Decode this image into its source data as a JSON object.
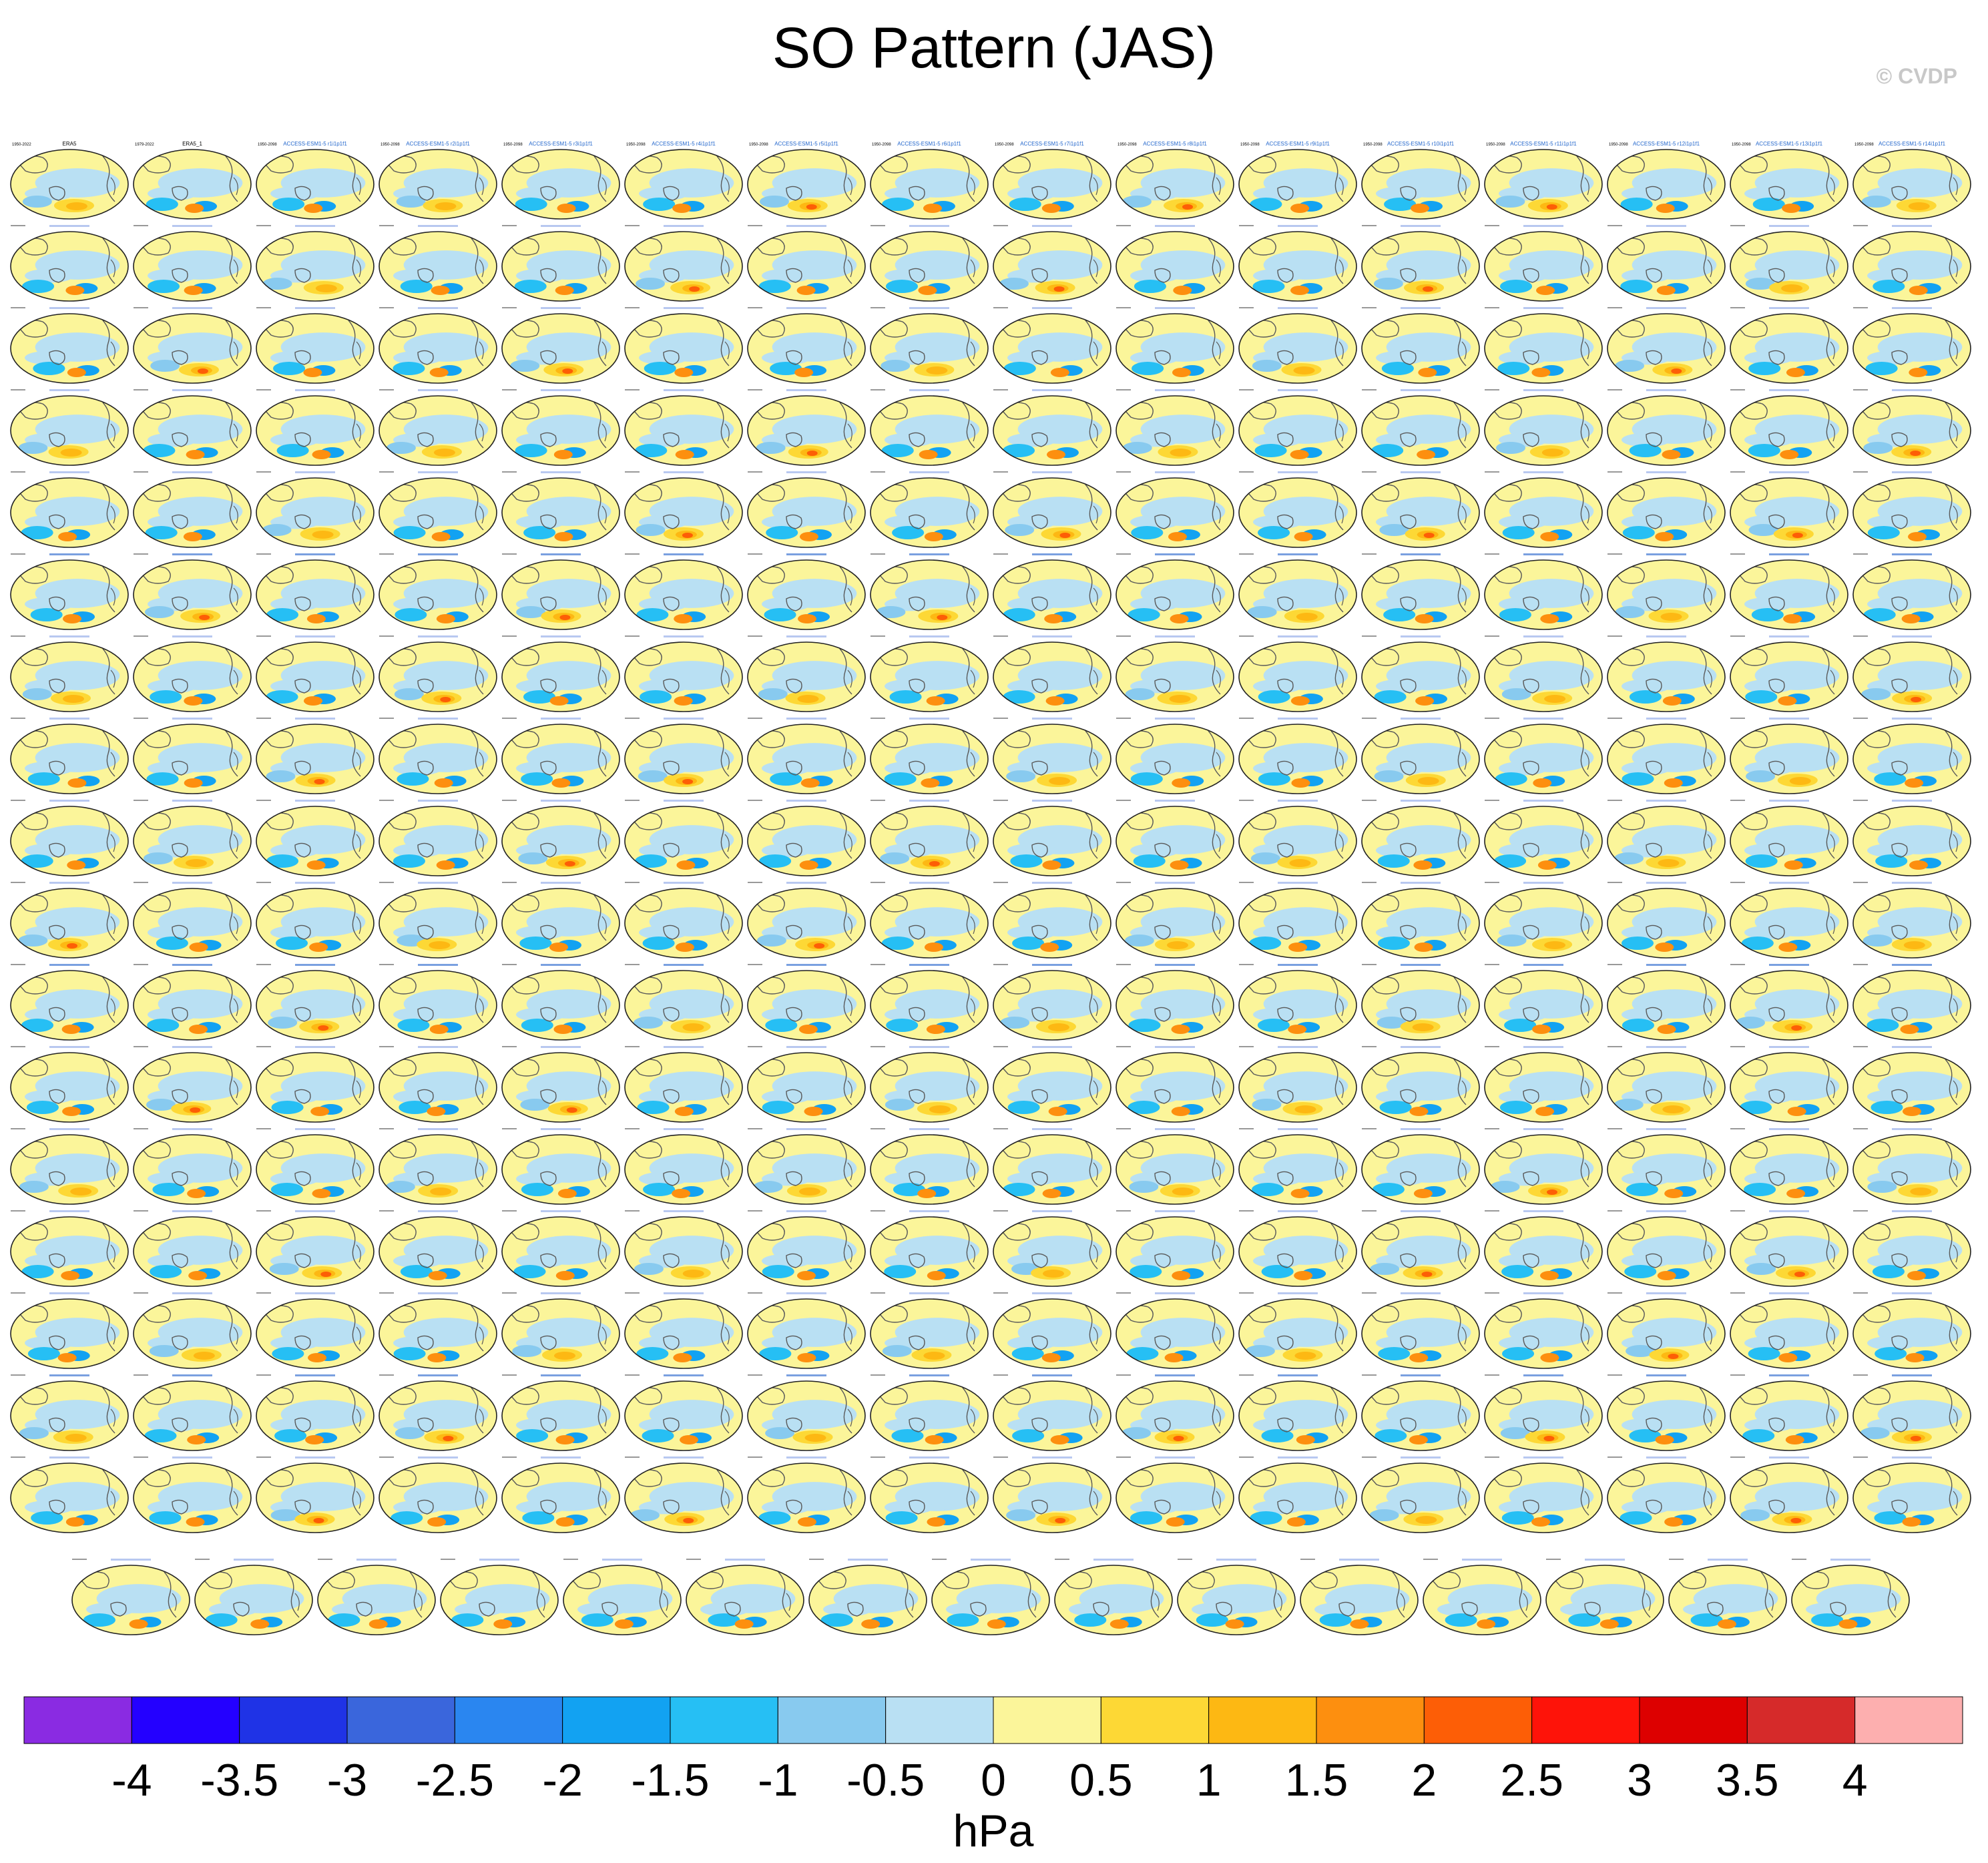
{
  "title": "SO Pattern (JAS)",
  "copyright": "© CVDP",
  "panels": {
    "first_row_labels": [
      "ERA5",
      "ERA5_1",
      "ACCESS-ESM1-5 r1i1p1f1",
      "ACCESS-ESM1-5 r2i1p1f1",
      "ACCESS-ESM1-5 r3i1p1f1",
      "ACCESS-ESM1-5 r4i1p1f1",
      "ACCESS-ESM1-5 r5i1p1f1",
      "ACCESS-ESM1-5 r6i1p1f1",
      "ACCESS-ESM1-5 r7i1p1f1",
      "ACCESS-ESM1-5 r8i1p1f1",
      "ACCESS-ESM1-5 r9i1p1f1",
      "ACCESS-ESM1-5 r10i1p1f1",
      "ACCESS-ESM1-5 r11i1p1f1",
      "ACCESS-ESM1-5 r12i1p1f1",
      "ACCESS-ESM1-5 r13i1p1f1",
      "ACCESS-ESM1-5 r14i1p1f1"
    ],
    "year_ranges": [
      "1950-2022",
      "1979-2022",
      "1950-2098"
    ]
  },
  "colorbar": {
    "colors": [
      "#8a2be2",
      "#2400ff",
      "#1f33e6",
      "#3a66dc",
      "#2a86f0",
      "#12a2f2",
      "#26bff4",
      "#88caef",
      "#b9e0f3",
      "#fbf59a",
      "#fdd835",
      "#fdb813",
      "#fd8f0f",
      "#fd5e06",
      "#fe1309",
      "#dd0000",
      "#d62a2a",
      "#fdafaf"
    ],
    "tick_labels": [
      "-4",
      "-3.5",
      "-3",
      "-2.5",
      "-2",
      "-1.5",
      "-1",
      "-0.5",
      "0",
      "0.5",
      "1",
      "1.5",
      "2",
      "2.5",
      "3",
      "3.5",
      "4"
    ],
    "unit": "hPa"
  }
}
